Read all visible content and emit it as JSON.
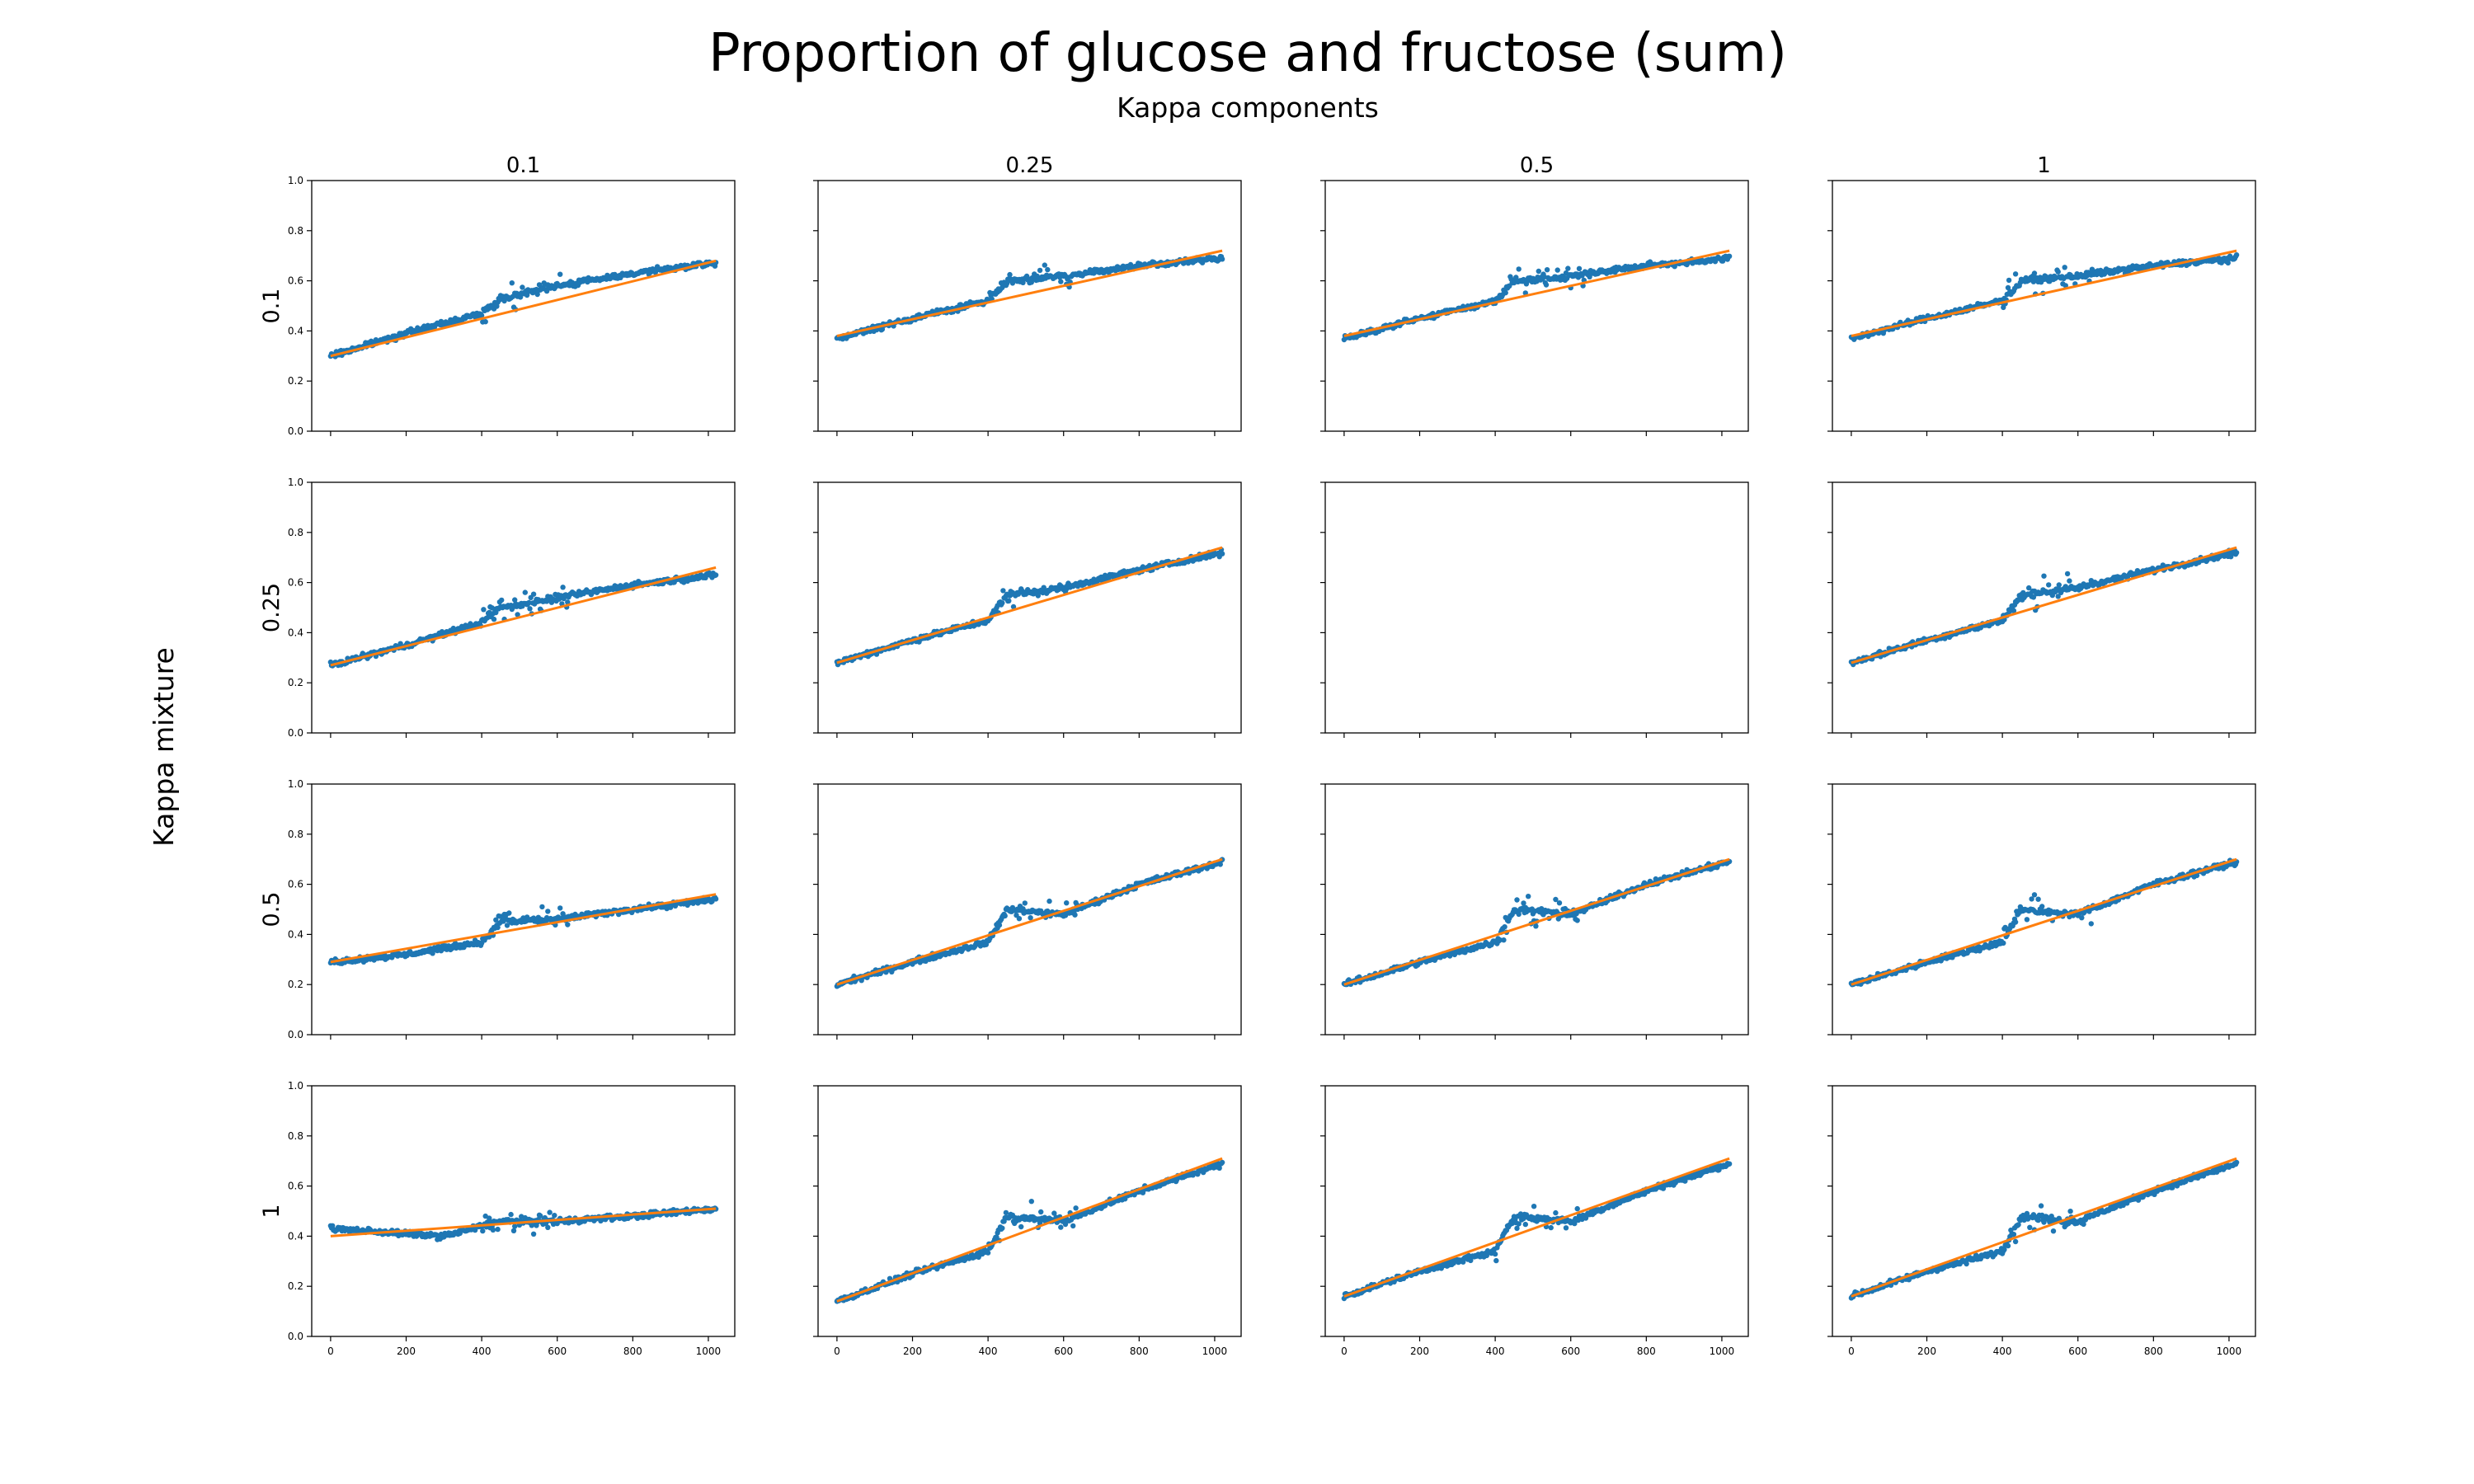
{
  "figure": {
    "title": "Proportion of glucose and fructose (sum)",
    "subtitle": "Kappa components",
    "row_axis_label": "Kappa mixture",
    "column_labels": [
      "0.1",
      "0.25",
      "0.5",
      "1"
    ],
    "row_labels": [
      "0.1",
      "0.25",
      "0.5",
      "1"
    ]
  },
  "colors": {
    "points": "#1f77b4",
    "fit": "#ff7f0e",
    "frame": "#000000",
    "background": "#ffffff"
  },
  "axes": {
    "x_ticks": [
      0,
      200,
      400,
      600,
      800,
      1000
    ],
    "y_ticks": [
      "0.0",
      "0.2",
      "0.4",
      "0.6",
      "0.8",
      "1.0"
    ]
  },
  "chart_data": [
    {
      "type": "scatter",
      "row": "0.1",
      "col": "0.1",
      "xlim": [
        -50,
        1070
      ],
      "ylim": [
        0,
        1.0
      ],
      "empty": false,
      "series": [
        {
          "values": [
            [
              0,
              0.3
            ],
            [
              200,
              0.39
            ],
            [
              400,
              0.47
            ],
            [
              450,
              0.53
            ],
            [
              600,
              0.58
            ],
            [
              800,
              0.63
            ],
            [
              1020,
              0.67
            ]
          ]
        },
        {
          "values": [
            [
              0,
              0.3
            ],
            [
              1020,
              0.68
            ]
          ]
        }
      ]
    },
    {
      "type": "scatter",
      "row": "0.1",
      "col": "0.25",
      "xlim": [
        -50,
        1070
      ],
      "ylim": [
        0,
        1.0
      ],
      "empty": false,
      "series": [
        {
          "values": [
            [
              0,
              0.37
            ],
            [
              200,
              0.45
            ],
            [
              400,
              0.52
            ],
            [
              450,
              0.6
            ],
            [
              600,
              0.62
            ],
            [
              800,
              0.66
            ],
            [
              1020,
              0.69
            ]
          ]
        },
        {
          "values": [
            [
              0,
              0.38
            ],
            [
              1020,
              0.72
            ]
          ]
        }
      ]
    },
    {
      "type": "scatter",
      "row": "0.1",
      "col": "0.5",
      "xlim": [
        -50,
        1070
      ],
      "ylim": [
        0,
        1.0
      ],
      "empty": false,
      "series": [
        {
          "values": [
            [
              0,
              0.37
            ],
            [
              200,
              0.45
            ],
            [
              400,
              0.52
            ],
            [
              450,
              0.6
            ],
            [
              600,
              0.62
            ],
            [
              800,
              0.66
            ],
            [
              1020,
              0.69
            ]
          ]
        },
        {
          "values": [
            [
              0,
              0.38
            ],
            [
              1020,
              0.72
            ]
          ]
        }
      ]
    },
    {
      "type": "scatter",
      "row": "0.1",
      "col": "1",
      "xlim": [
        -50,
        1070
      ],
      "ylim": [
        0,
        1.0
      ],
      "empty": false,
      "series": [
        {
          "values": [
            [
              0,
              0.37
            ],
            [
              200,
              0.45
            ],
            [
              400,
              0.52
            ],
            [
              450,
              0.6
            ],
            [
              600,
              0.62
            ],
            [
              800,
              0.66
            ],
            [
              1020,
              0.69
            ]
          ]
        },
        {
          "values": [
            [
              0,
              0.38
            ],
            [
              1020,
              0.72
            ]
          ]
        }
      ]
    },
    {
      "type": "scatter",
      "row": "0.25",
      "col": "0.1",
      "xlim": [
        -50,
        1070
      ],
      "ylim": [
        0,
        1.0
      ],
      "empty": false,
      "series": [
        {
          "values": [
            [
              0,
              0.27
            ],
            [
              200,
              0.35
            ],
            [
              400,
              0.44
            ],
            [
              450,
              0.5
            ],
            [
              600,
              0.54
            ],
            [
              800,
              0.59
            ],
            [
              1020,
              0.63
            ]
          ]
        },
        {
          "values": [
            [
              0,
              0.27
            ],
            [
              1020,
              0.66
            ]
          ]
        }
      ]
    },
    {
      "type": "scatter",
      "row": "0.25",
      "col": "0.25",
      "xlim": [
        -50,
        1070
      ],
      "ylim": [
        0,
        1.0
      ],
      "empty": false,
      "series": [
        {
          "values": [
            [
              0,
              0.28
            ],
            [
              200,
              0.37
            ],
            [
              400,
              0.45
            ],
            [
              450,
              0.55
            ],
            [
              600,
              0.58
            ],
            [
              800,
              0.65
            ],
            [
              1020,
              0.72
            ]
          ]
        },
        {
          "values": [
            [
              0,
              0.28
            ],
            [
              1020,
              0.74
            ]
          ]
        }
      ]
    },
    {
      "type": "scatter",
      "row": "0.25",
      "col": "0.5",
      "xlim": [
        -50,
        1070
      ],
      "ylim": [
        0,
        1.0
      ],
      "empty": true,
      "series": []
    },
    {
      "type": "scatter",
      "row": "0.25",
      "col": "1",
      "xlim": [
        -50,
        1070
      ],
      "ylim": [
        0,
        1.0
      ],
      "empty": false,
      "series": [
        {
          "values": [
            [
              0,
              0.28
            ],
            [
              200,
              0.37
            ],
            [
              400,
              0.45
            ],
            [
              450,
              0.55
            ],
            [
              600,
              0.58
            ],
            [
              800,
              0.65
            ],
            [
              1020,
              0.72
            ]
          ]
        },
        {
          "values": [
            [
              0,
              0.28
            ],
            [
              1020,
              0.74
            ]
          ]
        }
      ]
    },
    {
      "type": "scatter",
      "row": "0.5",
      "col": "0.1",
      "xlim": [
        -50,
        1070
      ],
      "ylim": [
        0,
        1.0
      ],
      "empty": false,
      "series": [
        {
          "values": [
            [
              0,
              0.29
            ],
            [
              200,
              0.32
            ],
            [
              400,
              0.37
            ],
            [
              450,
              0.45
            ],
            [
              600,
              0.46
            ],
            [
              800,
              0.5
            ],
            [
              1020,
              0.54
            ]
          ]
        },
        {
          "values": [
            [
              0,
              0.29
            ],
            [
              1020,
              0.56
            ]
          ]
        }
      ]
    },
    {
      "type": "scatter",
      "row": "0.5",
      "col": "0.25",
      "xlim": [
        -50,
        1070
      ],
      "ylim": [
        0,
        1.0
      ],
      "empty": false,
      "series": [
        {
          "values": [
            [
              0,
              0.2
            ],
            [
              200,
              0.29
            ],
            [
              400,
              0.37
            ],
            [
              450,
              0.5
            ],
            [
              600,
              0.48
            ],
            [
              800,
              0.6
            ],
            [
              1020,
              0.69
            ]
          ]
        },
        {
          "values": [
            [
              0,
              0.2
            ],
            [
              1020,
              0.7
            ]
          ]
        }
      ]
    },
    {
      "type": "scatter",
      "row": "0.5",
      "col": "0.5",
      "xlim": [
        -50,
        1070
      ],
      "ylim": [
        0,
        1.0
      ],
      "empty": false,
      "series": [
        {
          "values": [
            [
              0,
              0.2
            ],
            [
              200,
              0.29
            ],
            [
              400,
              0.37
            ],
            [
              450,
              0.5
            ],
            [
              600,
              0.48
            ],
            [
              800,
              0.6
            ],
            [
              1020,
              0.69
            ]
          ]
        },
        {
          "values": [
            [
              0,
              0.2
            ],
            [
              1020,
              0.7
            ]
          ]
        }
      ]
    },
    {
      "type": "scatter",
      "row": "0.5",
      "col": "1",
      "xlim": [
        -50,
        1070
      ],
      "ylim": [
        0,
        1.0
      ],
      "empty": false,
      "series": [
        {
          "values": [
            [
              0,
              0.2
            ],
            [
              200,
              0.29
            ],
            [
              400,
              0.37
            ],
            [
              450,
              0.5
            ],
            [
              600,
              0.48
            ],
            [
              800,
              0.6
            ],
            [
              1020,
              0.69
            ]
          ]
        },
        {
          "values": [
            [
              0,
              0.2
            ],
            [
              1020,
              0.7
            ]
          ]
        }
      ]
    },
    {
      "type": "scatter",
      "row": "1",
      "col": "0.1",
      "xlim": [
        -50,
        1070
      ],
      "ylim": [
        0,
        1.0
      ],
      "empty": false,
      "series": [
        {
          "values": [
            [
              0,
              0.43
            ],
            [
              200,
              0.41
            ],
            [
              300,
              0.4
            ],
            [
              450,
              0.46
            ],
            [
              600,
              0.46
            ],
            [
              800,
              0.48
            ],
            [
              1020,
              0.51
            ]
          ]
        },
        {
          "values": [
            [
              0,
              0.4
            ],
            [
              1020,
              0.51
            ]
          ]
        }
      ]
    },
    {
      "type": "scatter",
      "row": "1",
      "col": "0.25",
      "xlim": [
        -50,
        1070
      ],
      "ylim": [
        0,
        1.0
      ],
      "empty": false,
      "series": [
        {
          "values": [
            [
              0,
              0.14
            ],
            [
              200,
              0.25
            ],
            [
              400,
              0.34
            ],
            [
              450,
              0.48
            ],
            [
              600,
              0.46
            ],
            [
              800,
              0.58
            ],
            [
              1020,
              0.69
            ]
          ]
        },
        {
          "values": [
            [
              0,
              0.14
            ],
            [
              1020,
              0.71
            ]
          ]
        }
      ]
    },
    {
      "type": "scatter",
      "row": "1",
      "col": "0.5",
      "xlim": [
        -50,
        1070
      ],
      "ylim": [
        0,
        1.0
      ],
      "empty": false,
      "series": [
        {
          "values": [
            [
              0,
              0.16
            ],
            [
              200,
              0.26
            ],
            [
              400,
              0.34
            ],
            [
              450,
              0.48
            ],
            [
              600,
              0.46
            ],
            [
              800,
              0.58
            ],
            [
              1020,
              0.69
            ]
          ]
        },
        {
          "values": [
            [
              0,
              0.16
            ],
            [
              1020,
              0.71
            ]
          ]
        }
      ]
    },
    {
      "type": "scatter",
      "row": "1",
      "col": "1",
      "xlim": [
        -50,
        1070
      ],
      "ylim": [
        0,
        1.0
      ],
      "empty": false,
      "series": [
        {
          "values": [
            [
              0,
              0.16
            ],
            [
              200,
              0.26
            ],
            [
              400,
              0.34
            ],
            [
              450,
              0.48
            ],
            [
              600,
              0.46
            ],
            [
              800,
              0.58
            ],
            [
              1020,
              0.69
            ]
          ]
        },
        {
          "values": [
            [
              0,
              0.16
            ],
            [
              1020,
              0.71
            ]
          ]
        }
      ]
    }
  ]
}
